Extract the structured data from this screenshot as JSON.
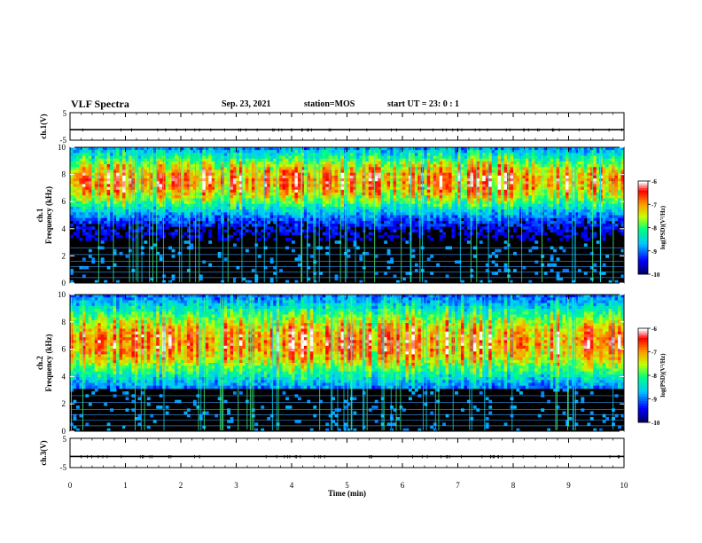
{
  "header": {
    "title": "VLF Spectra",
    "date": "Sep. 23, 2021",
    "station": "station=MOS",
    "start": "start  UT =  23: 0  : 1"
  },
  "chart_data": [
    {
      "type": "line",
      "panel": "ch1-waveform",
      "ylabel": "ch.1(V)",
      "ylim": [
        -5,
        5
      ],
      "yticks": [
        "5",
        "-5"
      ],
      "xlim": [
        0,
        10
      ],
      "series": [
        {
          "values": [
            -1.2,
            -1.2,
            -1.2,
            -1.2,
            -1.2,
            -1.2,
            -1.2,
            -1.2,
            -1.2,
            -1.2,
            -1.2
          ]
        }
      ]
    },
    {
      "type": "heatmap",
      "panel": "ch1-spectrogram",
      "ylabel_top": "ch.1",
      "ylabel": "Frequency (kHz)",
      "ylim": [
        0,
        10
      ],
      "yticks": [
        "0",
        "2",
        "4",
        "6",
        "8",
        "10"
      ],
      "xlim": [
        0,
        10
      ],
      "band_center_khz": 7.5,
      "band_halfwidth_khz": 2.2,
      "colorbar_label": "log(PSD)(V²/Hz)",
      "colorbar_ticks": [
        "-6",
        "-7",
        "-8",
        "-9",
        "-10"
      ],
      "colorbar_range": [
        -10,
        -6
      ],
      "colormap": [
        "#000066",
        "#0000ff",
        "#00c8ff",
        "#00ff80",
        "#c8ff00",
        "#ff8000",
        "#ff0000",
        "#ffffff"
      ]
    },
    {
      "type": "heatmap",
      "panel": "ch2-spectrogram",
      "ylabel_top": "ch.2",
      "ylabel": "Frequency (kHz)",
      "ylim": [
        0,
        10
      ],
      "yticks": [
        "0",
        "2",
        "4",
        "6",
        "8",
        "10"
      ],
      "xlim": [
        0,
        10
      ],
      "band_center_khz": 6.5,
      "band_halfwidth_khz": 2.8,
      "colorbar_label": "log(PSD)(V²/Hz)",
      "colorbar_ticks": [
        "-6",
        "-7",
        "-8",
        "-9",
        "-10"
      ],
      "colorbar_range": [
        -10,
        -6
      ],
      "colormap": [
        "#000066",
        "#0000ff",
        "#00c8ff",
        "#00ff80",
        "#c8ff00",
        "#ff8000",
        "#ff0000",
        "#ffffff"
      ]
    },
    {
      "type": "line",
      "panel": "ch3-waveform",
      "ylabel": "ch.3(V)",
      "ylim": [
        -5,
        5
      ],
      "yticks": [
        "5",
        "-5"
      ],
      "xlim": [
        0,
        10
      ],
      "series": [
        {
          "values": [
            -1.2,
            -1.2,
            -1.2,
            -1.2,
            -1.2,
            -1.2,
            -1.2,
            -1.2,
            -1.2,
            -1.2,
            -1.2
          ]
        }
      ]
    }
  ],
  "xaxis": {
    "label": "Time  (min)",
    "ticks": [
      "0",
      "1",
      "2",
      "3",
      "4",
      "5",
      "6",
      "7",
      "8",
      "9",
      "10"
    ]
  }
}
